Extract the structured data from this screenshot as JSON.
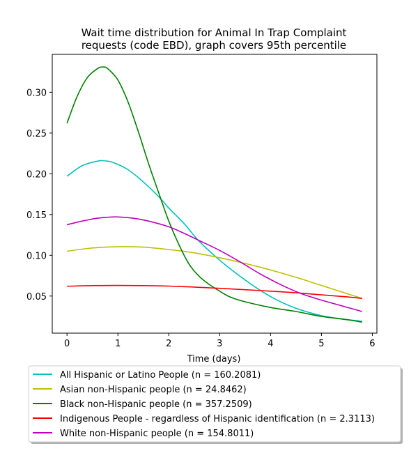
{
  "chart_data": {
    "type": "line",
    "title_line1": "Wait time distribution  for Animal In Trap Complaint",
    "title_line2": "requests (code EBD), graph covers 95th percentile",
    "xlabel": "Time (days)",
    "ylabel": "",
    "xlim": [
      -0.29,
      6.09
    ],
    "ylim": [
      0.0045,
      0.3465
    ],
    "xticks": [
      0,
      1,
      2,
      3,
      4,
      5,
      6
    ],
    "yticks": [
      0.05,
      0.1,
      0.15,
      0.2,
      0.25,
      0.3
    ],
    "ytick_labels": [
      "0.05",
      "0.10",
      "0.15",
      "0.20",
      "0.25",
      "0.30"
    ],
    "grid": false,
    "legend_position": "below plot",
    "series": [
      {
        "name": "All Hispanic or Latino People (n = 160.2081)",
        "color": "#00bfbf",
        "x": [
          0,
          0.3,
          0.6,
          0.7,
          0.9,
          1.2,
          1.5,
          1.8,
          2.0,
          2.3,
          2.6,
          3.0,
          3.3,
          3.7,
          4.1,
          4.5,
          5.0,
          5.4,
          5.8
        ],
        "y": [
          0.197,
          0.21,
          0.2155,
          0.216,
          0.214,
          0.205,
          0.19,
          0.172,
          0.158,
          0.139,
          0.117,
          0.094,
          0.079,
          0.061,
          0.046,
          0.035,
          0.026,
          0.022,
          0.019
        ]
      },
      {
        "name": "Asian non-Hispanic people (n = 24.8462)",
        "color": "#bfbf00",
        "x": [
          0,
          0.5,
          1.0,
          1.5,
          2.0,
          2.5,
          3.0,
          3.5,
          4.0,
          4.5,
          5.0,
          5.5,
          5.8
        ],
        "y": [
          0.105,
          0.109,
          0.1105,
          0.11,
          0.107,
          0.103,
          0.097,
          0.09,
          0.082,
          0.073,
          0.063,
          0.053,
          0.047
        ]
      },
      {
        "name": "Black non-Hispanic people (n = 357.2509)",
        "color": "#008000",
        "x": [
          0,
          0.2,
          0.4,
          0.6,
          0.7,
          0.8,
          1.0,
          1.2,
          1.4,
          1.6,
          1.8,
          2.0,
          2.2,
          2.4,
          2.6,
          2.8,
          3.0,
          3.2,
          3.5,
          4.0,
          4.5,
          5.0,
          5.5,
          5.8
        ],
        "y": [
          0.262,
          0.295,
          0.318,
          0.329,
          0.331,
          0.329,
          0.315,
          0.288,
          0.252,
          0.213,
          0.177,
          0.142,
          0.113,
          0.089,
          0.074,
          0.064,
          0.056,
          0.049,
          0.043,
          0.036,
          0.031,
          0.025,
          0.021,
          0.018
        ]
      },
      {
        "name": "Indigenous People - regardless of Hispanic identification (n = 2.3113)",
        "color": "#ff0000",
        "x": [
          0,
          0.5,
          1.0,
          1.5,
          2.0,
          2.5,
          3.0,
          3.5,
          4.0,
          4.5,
          5.0,
          5.5,
          5.8
        ],
        "y": [
          0.062,
          0.0628,
          0.063,
          0.0628,
          0.0622,
          0.061,
          0.0595,
          0.0578,
          0.056,
          0.054,
          0.0515,
          0.049,
          0.047
        ]
      },
      {
        "name": "White non-Hispanic people (n = 154.8011)",
        "color": "#bf00bf",
        "x": [
          0,
          0.3,
          0.6,
          0.9,
          1.0,
          1.3,
          1.6,
          2.0,
          2.3,
          2.6,
          3.0,
          3.4,
          3.8,
          4.2,
          4.6,
          5.0,
          5.4,
          5.8
        ],
        "y": [
          0.1375,
          0.142,
          0.1455,
          0.147,
          0.147,
          0.1455,
          0.142,
          0.135,
          0.127,
          0.118,
          0.106,
          0.092,
          0.077,
          0.064,
          0.053,
          0.045,
          0.038,
          0.031
        ]
      }
    ]
  }
}
